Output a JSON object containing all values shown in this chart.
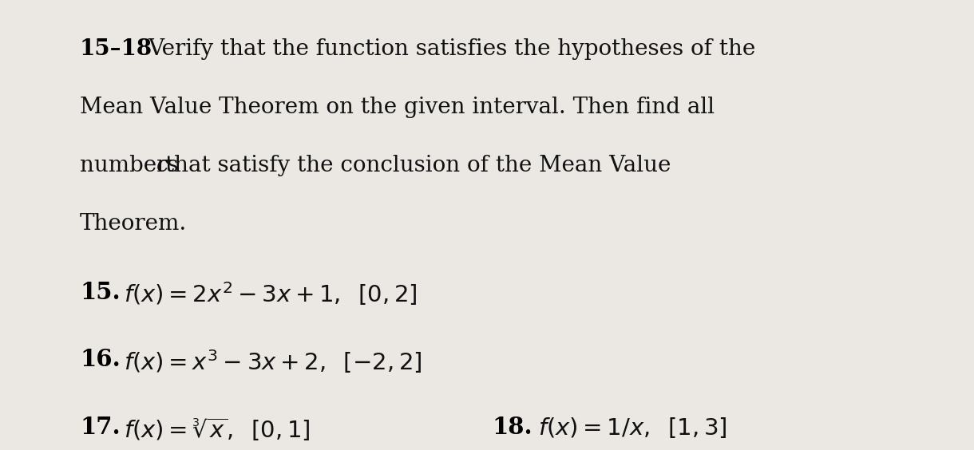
{
  "background_color": "#ebe8e3",
  "fig_width": 12.0,
  "fig_height": 5.37,
  "text_color": "#111111",
  "bold_color": "#000000",
  "fontsize_header": 20,
  "fontsize_problems": 21,
  "header_lines": [
    {
      "bold": "15–18",
      "normal": " Verify that the function satisfies the hypotheses of the"
    },
    {
      "bold": "",
      "normal": "Mean Value Theorem on the given interval. Then find all"
    },
    {
      "bold": "",
      "normal_parts": [
        "numbers ",
        "c",
        " that satisfy the conclusion of the Mean Value"
      ]
    },
    {
      "bold": "",
      "normal": "Theorem."
    }
  ],
  "prob15_num": "15.",
  "prob15_text": " $f(x) = 2x^2 - 3x + 1,\\;\\;$ $[0, 2]$",
  "prob16_num": "16.",
  "prob16_text": " $f(x) = x^3 - 3x + 2,\\;\\;$ $[-2, 2]$",
  "prob17_num": "17.",
  "prob17_text": " $f(x) = \\sqrt[3]{x},\\;\\;$ $[0, 1]$",
  "prob18_num": "18.",
  "prob18_text": " $f(x) = 1/x,\\;\\;$ $[1, 3]$"
}
